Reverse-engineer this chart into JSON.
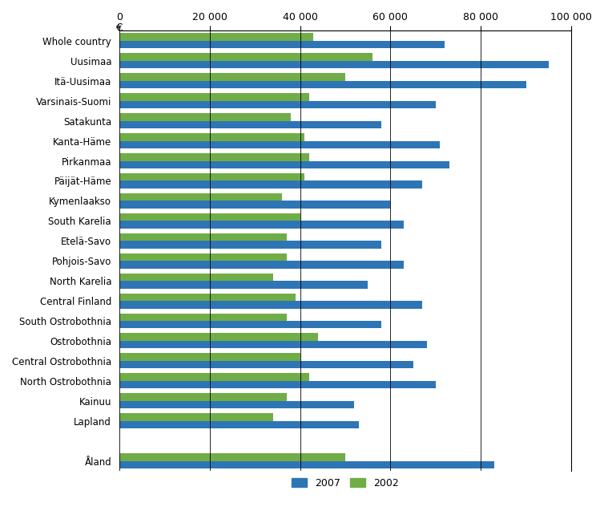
{
  "regions": [
    "Whole country",
    "Uusimaa",
    "Itä-Uusimaa",
    "Varsinais-Suomi",
    "Satakunta",
    "Kanta-Häme",
    "Pirkanmaa",
    "Päijät-Häme",
    "Kymenlaakso",
    "South Karelia",
    "Etelä-Savo",
    "Pohjois-Savo",
    "North Karelia",
    "Central Finland",
    "South Ostrobothnia",
    "Ostrobothnia",
    "Central Ostrobothnia",
    "North Ostrobothnia",
    "Kainuu",
    "Lapland",
    "",
    "Åland"
  ],
  "values_2007": [
    72000,
    95000,
    90000,
    70000,
    58000,
    71000,
    73000,
    67000,
    60000,
    63000,
    58000,
    63000,
    55000,
    67000,
    58000,
    68000,
    65000,
    70000,
    52000,
    53000,
    0,
    83000
  ],
  "values_2002": [
    43000,
    56000,
    50000,
    42000,
    38000,
    41000,
    42000,
    41000,
    36000,
    40000,
    37000,
    37000,
    34000,
    39000,
    37000,
    44000,
    40000,
    42000,
    37000,
    34000,
    0,
    50000
  ],
  "color_2007": "#2E75B6",
  "color_2002": "#70AD47",
  "xlim": [
    0,
    100000
  ],
  "xticks": [
    0,
    20000,
    40000,
    60000,
    80000,
    100000
  ],
  "xtick_labels": [
    "0",
    "20 000",
    "40 000",
    "60 000",
    "80 000",
    "100 000"
  ],
  "xlabel_euro": "€",
  "legend_2007": "2007",
  "legend_2002": "2002",
  "bar_height": 0.38,
  "figsize": [
    7.54,
    6.52
  ],
  "dpi": 100
}
